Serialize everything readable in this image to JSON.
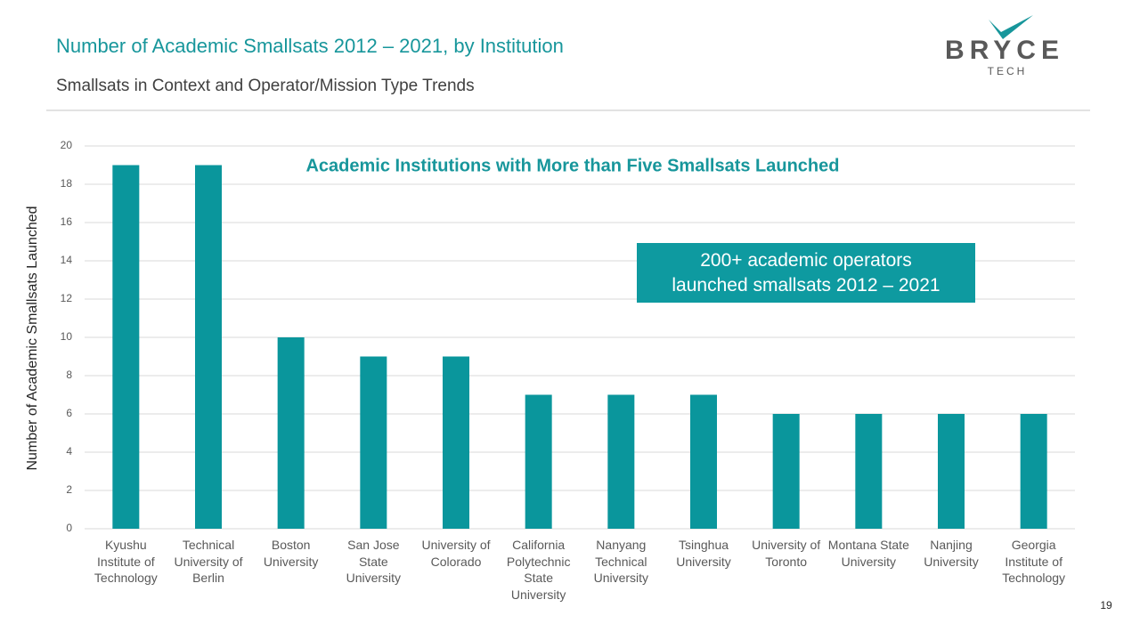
{
  "header": {
    "title": "Number of Academic Smallsats 2012 – 2021, by Institution",
    "subtitle": "Smallsats in Context and Operator/Mission Type Trends",
    "logo": {
      "name": "BRYCE",
      "sub": "TECH"
    }
  },
  "page_number": "19",
  "chart_data": {
    "type": "bar",
    "title": "Academic Institutions with More than Five Smallsats Launched",
    "y_label": "Number of Academic Smallsats Launched",
    "annotation": [
      "200+ academic operators",
      "launched smallsats 2012 – 2021"
    ],
    "categories": [
      "Kyushu Institute of Technology",
      "Technical University of Berlin",
      "Boston University",
      "San Jose State University",
      "University of Colorado",
      "California Polytechnic State University",
      "Nanyang Technical University",
      "Tsinghua University",
      "University of Toronto",
      "Montana State University",
      "Nanjing University",
      "Georgia Institute of Technology"
    ],
    "values": [
      19,
      19,
      10,
      9,
      9,
      7,
      7,
      7,
      6,
      6,
      6,
      6
    ],
    "color": "#0a969c",
    "ylim": [
      0,
      20
    ],
    "yticks": [
      0,
      2,
      4,
      6,
      8,
      10,
      12,
      14,
      16,
      18,
      20
    ],
    "grid": true
  }
}
